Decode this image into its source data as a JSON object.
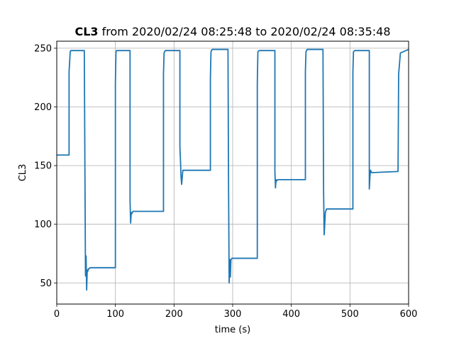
{
  "chart_data": {
    "type": "line",
    "title_bold": "CL3",
    "title_rest": " from 2020/02/24 08:25:48 to 2020/02/24 08:35:48",
    "xlabel": "time (s)",
    "ylabel": "CL3",
    "xlim": [
      0,
      600
    ],
    "ylim": [
      32,
      256
    ],
    "xticks": [
      0,
      100,
      200,
      300,
      400,
      500,
      600
    ],
    "yticks": [
      50,
      100,
      150,
      200,
      250
    ],
    "grid": true,
    "series": [
      {
        "color": "#1f77b4",
        "x": [
          0,
          21,
          21,
          23,
          24,
          47,
          48,
          49,
          50,
          51,
          52,
          53,
          54,
          55,
          57,
          100,
          100,
          101,
          102,
          105,
          125,
          125,
          126,
          127,
          128,
          130,
          182,
          182,
          183,
          185,
          210,
          210,
          211,
          212,
          213,
          215,
          262,
          262,
          263,
          265,
          292,
          293,
          294,
          295,
          296,
          297,
          299,
          342,
          342,
          343,
          345,
          372,
          372,
          373,
          374,
          375,
          377,
          424,
          424,
          425,
          427,
          454,
          455,
          456,
          457,
          458,
          460,
          505,
          505,
          506,
          508,
          533,
          533,
          534,
          535,
          537,
          582,
          582,
          583,
          586,
          600
        ],
        "y": [
          159,
          159,
          230,
          247,
          248,
          248,
          150,
          56,
          73,
          44,
          61,
          60,
          62,
          62,
          63,
          63,
          220,
          247,
          248,
          248,
          248,
          120,
          101,
          110,
          109,
          111,
          111,
          228,
          246,
          248,
          248,
          166,
          154,
          140,
          134,
          146,
          146,
          225,
          247,
          249,
          249,
          130,
          50,
          70,
          55,
          70,
          71,
          71,
          220,
          247,
          248,
          248,
          145,
          131,
          138,
          137,
          138,
          138,
          230,
          247,
          249,
          249,
          130,
          91,
          100,
          110,
          113,
          113,
          230,
          247,
          248,
          248,
          130,
          140,
          146,
          144,
          145,
          145,
          228,
          246,
          249
        ]
      }
    ]
  }
}
